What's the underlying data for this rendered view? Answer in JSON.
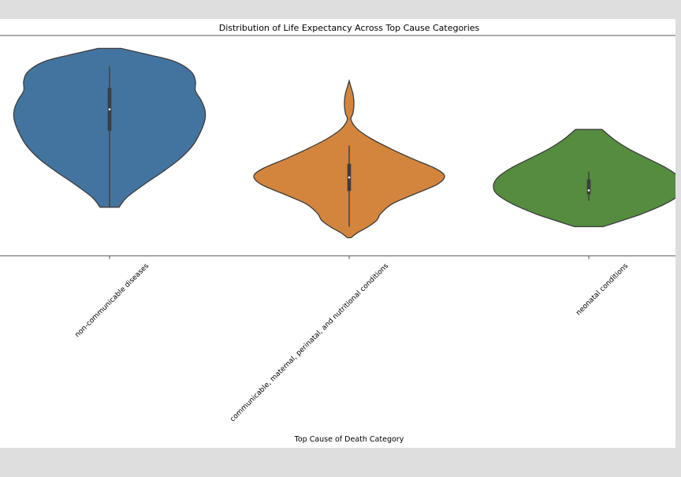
{
  "chart_data": {
    "type": "violin",
    "title": "Distribution of Life Expectancy Across Top Cause Categories",
    "xlabel": "Top Cause of Death Category",
    "ylabel": "",
    "ylim": [
      53,
      87
    ],
    "grid": false,
    "legend": "none",
    "categories": [
      "non-communicable diseases",
      "communicable, maternal, perinatal, and nutritional conditions",
      "neonatal conditions"
    ],
    "series": [
      {
        "color": "#4374a0",
        "min": 60.5,
        "q1": 72.3,
        "median": 75.6,
        "q3": 78.9,
        "max": 82.2,
        "extent": [
          60.5,
          85.0
        ],
        "density": [
          [
            60.5,
            0.1
          ],
          [
            62,
            0.18
          ],
          [
            64,
            0.36
          ],
          [
            66,
            0.56
          ],
          [
            68,
            0.74
          ],
          [
            70,
            0.87
          ],
          [
            72,
            0.95
          ],
          [
            74,
            1.0
          ],
          [
            75.5,
            1.0
          ],
          [
            77,
            0.96
          ],
          [
            78.5,
            0.9
          ],
          [
            80,
            0.9
          ],
          [
            81.5,
            0.85
          ],
          [
            83,
            0.68
          ],
          [
            84,
            0.42
          ],
          [
            85,
            0.12
          ]
        ]
      },
      {
        "color": "#d3843d",
        "min": 57.5,
        "q1": 63.0,
        "median": 65.1,
        "q3": 67.2,
        "max": 70.0,
        "extent": [
          55.8,
          80.0
        ],
        "density": [
          [
            55.8,
            0.02
          ],
          [
            56.5,
            0.08
          ],
          [
            57.5,
            0.2
          ],
          [
            58.5,
            0.29
          ],
          [
            59.5,
            0.33
          ],
          [
            61,
            0.45
          ],
          [
            62.5,
            0.68
          ],
          [
            64,
            0.92
          ],
          [
            65.3,
            1.0
          ],
          [
            66.5,
            0.9
          ],
          [
            68,
            0.66
          ],
          [
            69.5,
            0.44
          ],
          [
            71,
            0.24
          ],
          [
            72.5,
            0.09
          ],
          [
            74,
            0.02
          ],
          [
            75,
            0.04
          ],
          [
            76.5,
            0.05
          ],
          [
            78,
            0.04
          ],
          [
            79,
            0.02
          ],
          [
            80,
            0.0
          ]
        ]
      },
      {
        "color": "#558c40",
        "min": 61.5,
        "q1": 62.5,
        "median": 63.1,
        "q3": 64.8,
        "max": 66.0,
        "extent": [
          57.5,
          72.5
        ],
        "density": [
          [
            57.5,
            0.15
          ],
          [
            58.5,
            0.36
          ],
          [
            59.5,
            0.56
          ],
          [
            61,
            0.8
          ],
          [
            62.5,
            0.96
          ],
          [
            63.7,
            1.0
          ],
          [
            65,
            0.96
          ],
          [
            66.5,
            0.82
          ],
          [
            68,
            0.62
          ],
          [
            69.5,
            0.42
          ],
          [
            71,
            0.26
          ],
          [
            72.5,
            0.14
          ]
        ]
      }
    ]
  }
}
